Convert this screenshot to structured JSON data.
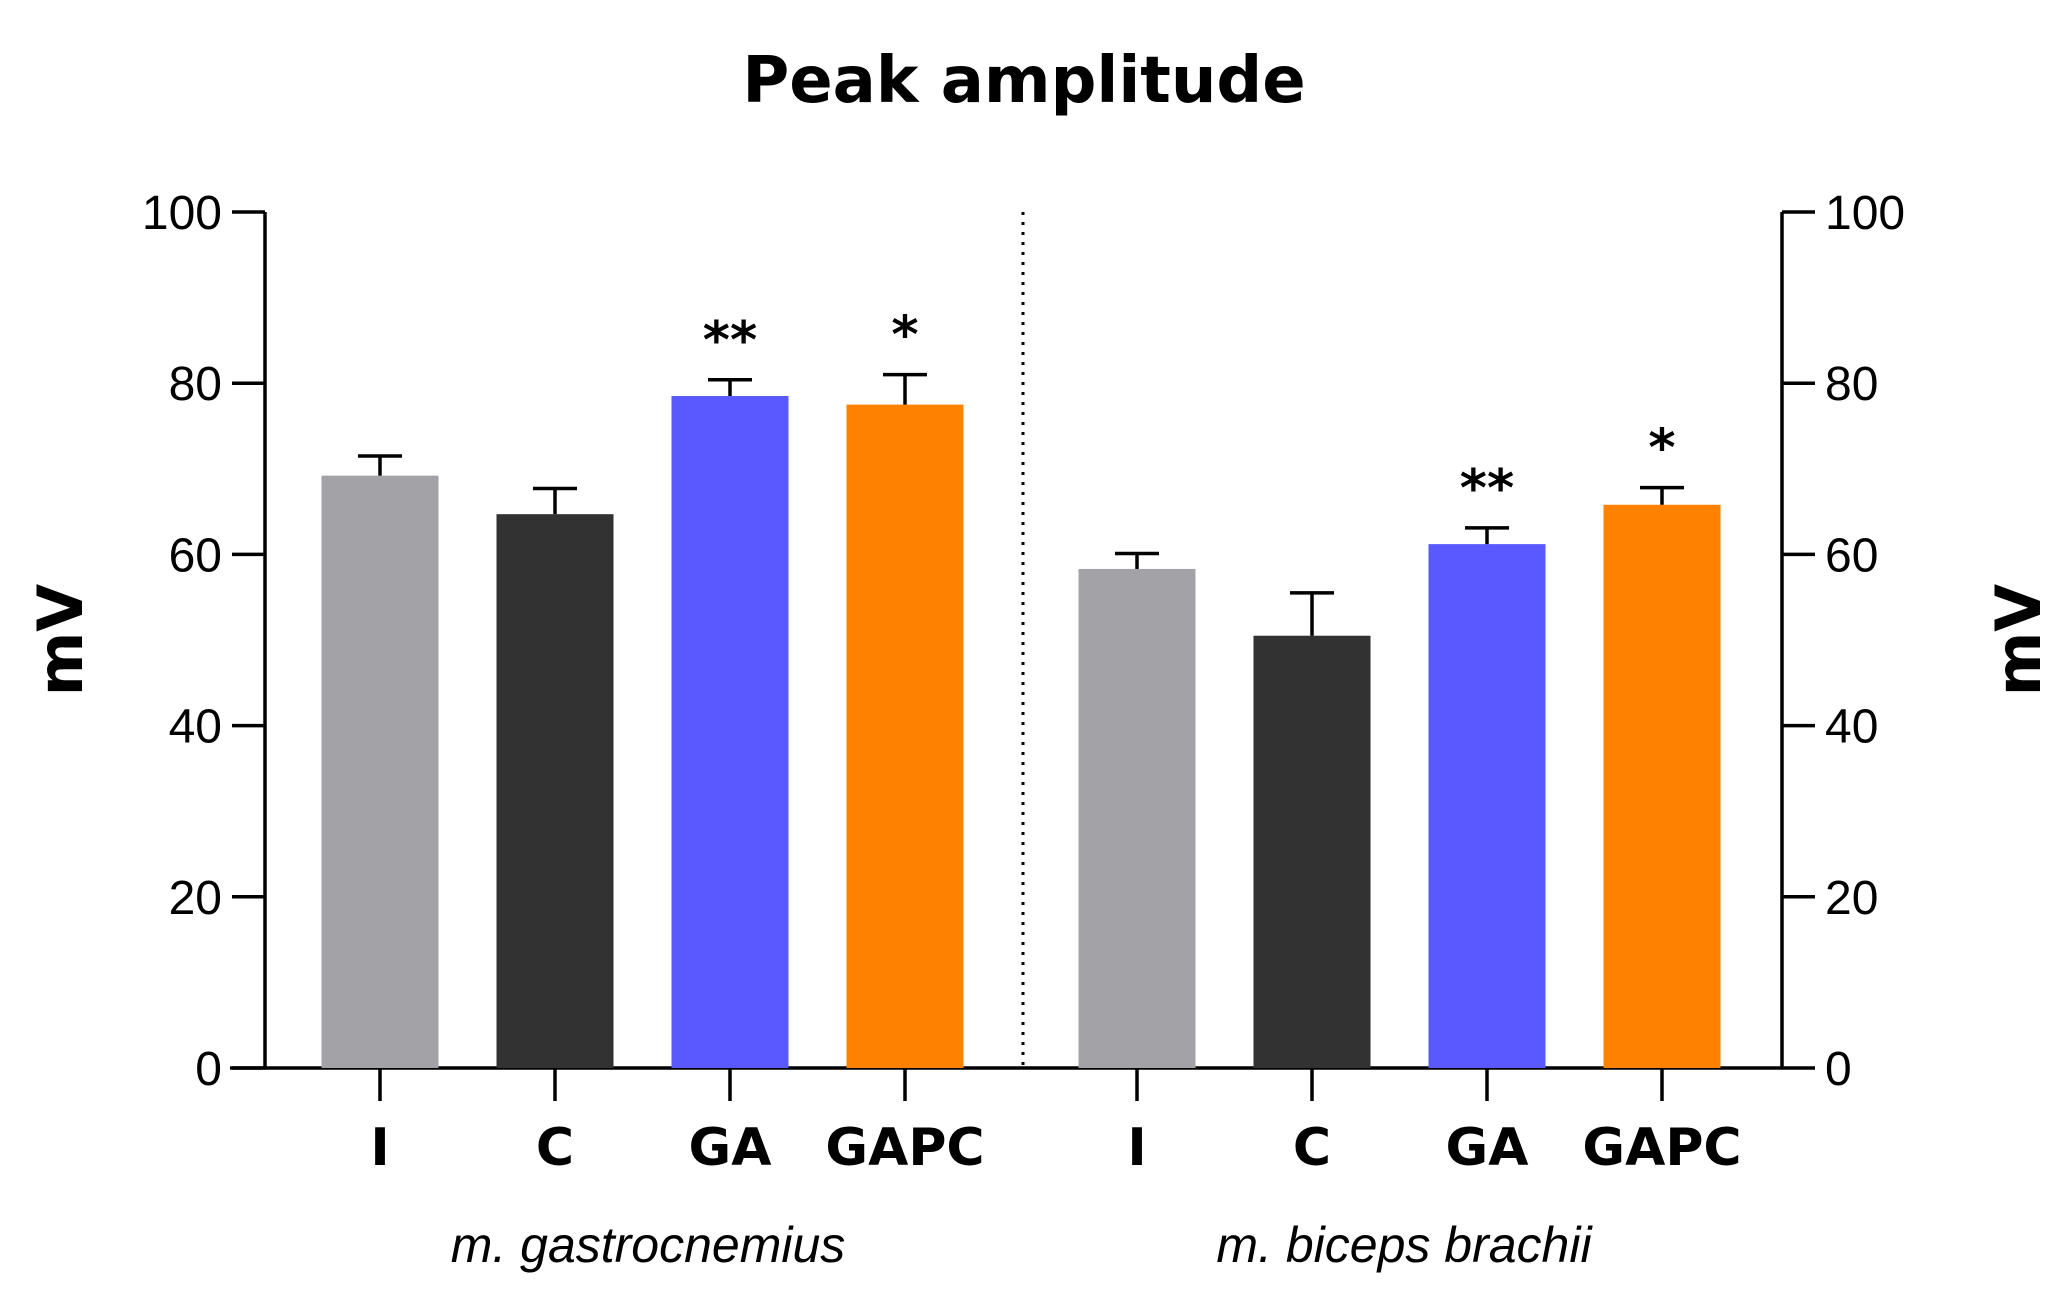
{
  "chart_data": {
    "type": "bar",
    "title": "Peak amplitude",
    "ylabel_left": "mV",
    "ylabel_right": "mV",
    "ylim": [
      0,
      100
    ],
    "yticks": [
      "0",
      "20",
      "40",
      "60",
      "80",
      "100"
    ],
    "groups": [
      {
        "name": "m. gastrocnemius",
        "bars": [
          {
            "category": "I",
            "value": 69.2,
            "error": 2.3,
            "sig": "",
            "color": "#a3a2a7"
          },
          {
            "category": "C",
            "value": 64.7,
            "error": 3.0,
            "sig": "",
            "color": "#323232"
          },
          {
            "category": "GA",
            "value": 78.5,
            "error": 1.9,
            "sig": "**",
            "color": "#5959ff"
          },
          {
            "category": "GAPC",
            "value": 77.5,
            "error": 3.5,
            "sig": "*",
            "color": "#ff8102"
          }
        ]
      },
      {
        "name": "m. biceps brachii",
        "bars": [
          {
            "category": "I",
            "value": 58.3,
            "error": 1.8,
            "sig": "",
            "color": "#a3a2a7"
          },
          {
            "category": "C",
            "value": 50.5,
            "error": 5.0,
            "sig": "",
            "color": "#323232"
          },
          {
            "category": "GA",
            "value": 61.2,
            "error": 1.9,
            "sig": "**",
            "color": "#5959ff"
          },
          {
            "category": "GAPC",
            "value": 65.8,
            "error": 2.0,
            "sig": "*",
            "color": "#ff8102"
          }
        ]
      }
    ]
  }
}
